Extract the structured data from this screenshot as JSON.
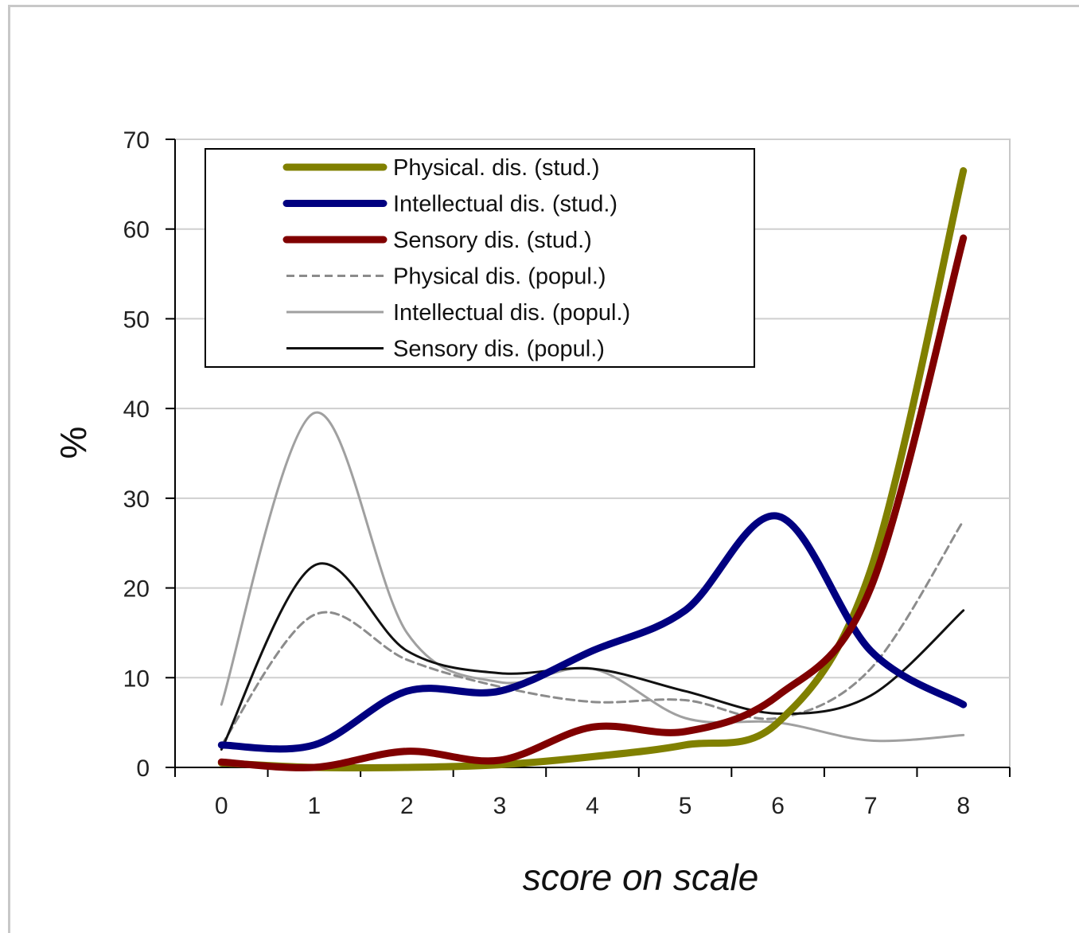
{
  "chart_data": {
    "type": "line",
    "title": "",
    "xlabel": "score on scale",
    "ylabel": "%",
    "x": [
      0,
      1,
      2,
      3,
      4,
      5,
      6,
      7,
      8
    ],
    "x_tick_labels": [
      "0",
      "1",
      "2",
      "3",
      "4",
      "5",
      "6",
      "7",
      "8"
    ],
    "y_tick_labels": [
      "0",
      "10",
      "20",
      "30",
      "40",
      "50",
      "60",
      "70"
    ],
    "xlim": [
      -0.5,
      8.5
    ],
    "ylim": [
      0,
      70
    ],
    "grid": "horizontal",
    "legend_position": "top-left",
    "smoothed": true,
    "series": [
      {
        "name": "Physical. dis. (stud.)",
        "values": [
          0.5,
          0,
          0,
          0.3,
          1.2,
          2.5,
          5,
          22,
          66.5
        ],
        "color": "#808000",
        "style": "thick"
      },
      {
        "name": "Intellectual dis. (stud.)",
        "values": [
          2.5,
          2.5,
          8.5,
          8.5,
          13,
          17.5,
          28,
          13,
          7
        ],
        "color": "#000080",
        "style": "thick"
      },
      {
        "name": "Sensory dis. (stud.)",
        "values": [
          0.6,
          0,
          1.8,
          0.8,
          4.5,
          4,
          8,
          20,
          59
        ],
        "color": "#800000",
        "style": "thick"
      },
      {
        "name": "Physical dis. (popul.)",
        "values": [
          2.5,
          17,
          12,
          9,
          7.3,
          7.5,
          5.5,
          11,
          27.5
        ],
        "color": "#8c8c8c",
        "style": "dashed"
      },
      {
        "name": "Intellectual dis. (popul.)",
        "values": [
          7,
          39.5,
          15,
          9.5,
          11,
          5.5,
          5,
          3,
          3.6
        ],
        "color": "#a0a0a0",
        "style": "thin"
      },
      {
        "name": "Sensory dis. (popul.)",
        "values": [
          2,
          22.5,
          13,
          10.5,
          11,
          8.5,
          6,
          8,
          17.5
        ],
        "color": "#111111",
        "style": "thin"
      }
    ]
  }
}
